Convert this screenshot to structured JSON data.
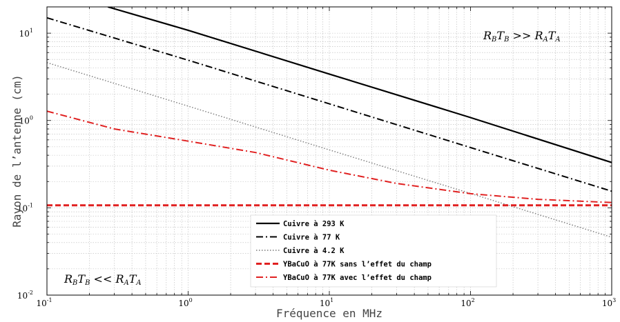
{
  "chart_data": {
    "type": "line",
    "xlabel": "Fréquence en MHz",
    "ylabel": "Rayon de l’antenne (cm)",
    "x_scale": "log",
    "y_scale": "log",
    "xlim": [
      0.1,
      1000
    ],
    "ylim": [
      0.01,
      20
    ],
    "grid": "minor dotted, log",
    "x_ticks": [
      {
        "base": "10",
        "exp": "-1",
        "value": 0.1
      },
      {
        "base": "10",
        "exp": "0",
        "value": 1
      },
      {
        "base": "10",
        "exp": "1",
        "value": 10
      },
      {
        "base": "10",
        "exp": "2",
        "value": 100
      },
      {
        "base": "10",
        "exp": "3",
        "value": 1000
      }
    ],
    "y_ticks": [
      {
        "base": "10",
        "exp": "-2",
        "value": 0.01
      },
      {
        "base": "10",
        "exp": "-1",
        "value": 0.1
      },
      {
        "base": "10",
        "exp": "0",
        "value": 1
      },
      {
        "base": "10",
        "exp": "1",
        "value": 10
      }
    ],
    "legend_position": "bottom-center",
    "series": [
      {
        "name": "Cuivre à 293 K",
        "color": "#000000",
        "dash": "solid",
        "x": [
          0.27,
          1,
          10,
          100,
          1000
        ],
        "y": [
          20,
          10.8,
          3.4,
          1.08,
          0.33
        ]
      },
      {
        "name": "Cuivre à 77 K",
        "color": "#000000",
        "dash": "dashdot",
        "x": [
          0.1,
          1,
          10,
          100,
          1000
        ],
        "y": [
          15,
          4.9,
          1.55,
          0.49,
          0.155
        ]
      },
      {
        "name": "Cuivre à 4.2 K",
        "color": "#777777",
        "dash": "dotted",
        "x": [
          0.1,
          1,
          10,
          100,
          1000
        ],
        "y": [
          4.6,
          1.46,
          0.46,
          0.146,
          0.046
        ]
      },
      {
        "name": "YBaCuO à 77K sans l’effet du champ",
        "color": "#e02020",
        "dash": "dashed",
        "x": [
          0.1,
          1000
        ],
        "y": [
          0.107,
          0.107
        ]
      },
      {
        "name": "YBaCuO à 77K avec l’effet du champ",
        "color": "#e02020",
        "dash": "dashdot",
        "x": [
          0.1,
          0.3,
          1,
          3,
          10,
          30,
          100,
          300,
          1000
        ],
        "y": [
          1.28,
          0.8,
          0.58,
          0.43,
          0.27,
          0.19,
          0.145,
          0.125,
          0.115
        ]
      }
    ],
    "annotations": [
      {
        "R": "R",
        "Rsub": "B",
        "T": "T",
        "Tsub": "B",
        "op": "<<",
        "R2": "R",
        "R2sub": "A",
        "T2": "T",
        "T2sub": "A",
        "position": "bottom-left"
      },
      {
        "R": "R",
        "Rsub": "B",
        "T": "T",
        "Tsub": "B",
        "op": ">>",
        "R2": "R",
        "R2sub": "A",
        "T2": "T",
        "T2sub": "A",
        "position": "top-right"
      }
    ]
  }
}
